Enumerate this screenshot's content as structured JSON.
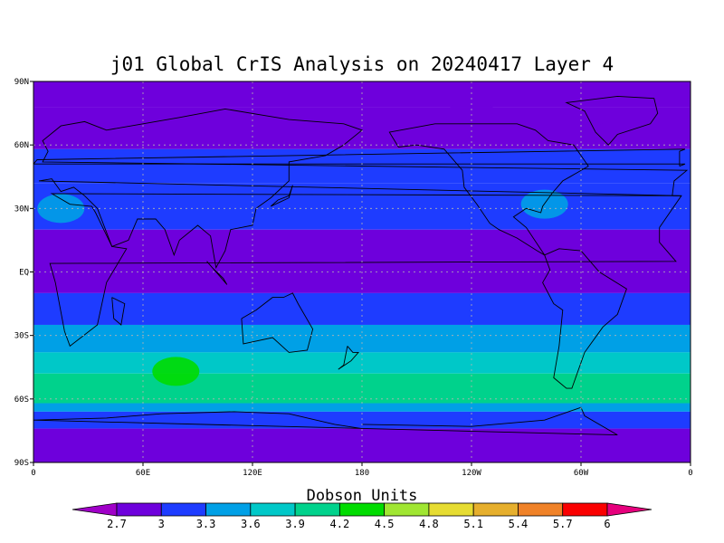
{
  "chart_data": {
    "type": "heatmap",
    "title": "j01 Global CrIS Analysis on 20240417 Layer 4",
    "colorbar_label": "Dobson Units",
    "x_ticks": [
      "0",
      "60E",
      "120E",
      "180",
      "120W",
      "60W",
      "0"
    ],
    "y_ticks": [
      "90N",
      "60N",
      "30N",
      "EQ",
      "30S",
      "60S",
      "90S"
    ],
    "xlim": [
      0,
      360
    ],
    "ylim": [
      -90,
      90
    ],
    "grid": true,
    "colorbar": {
      "tick_labels": [
        "2.7",
        "3",
        "3.3",
        "3.6",
        "3.9",
        "4.2",
        "4.5",
        "4.8",
        "5.1",
        "5.4",
        "5.7",
        "6"
      ],
      "colors": [
        "#a000c8",
        "#6e00dc",
        "#1e3cff",
        "#00a0e6",
        "#00c8c8",
        "#00d28c",
        "#00dc00",
        "#a0e632",
        "#e6dc32",
        "#e6af2d",
        "#f08228",
        "#fa0000",
        "#e6007d"
      ]
    },
    "lat_bands": [
      {
        "lat": [
          90,
          78
        ],
        "value": 2.8
      },
      {
        "lat": [
          78,
          58
        ],
        "value": 2.95
      },
      {
        "lat": [
          58,
          42
        ],
        "value": 3.2
      },
      {
        "lat": [
          42,
          20
        ],
        "value": 3.05
      },
      {
        "lat": [
          20,
          -10
        ],
        "value": 2.9
      },
      {
        "lat": [
          -10,
          -25
        ],
        "value": 3.05
      },
      {
        "lat": [
          -25,
          -38
        ],
        "value": 3.35
      },
      {
        "lat": [
          -38,
          -48
        ],
        "value": 3.7
      },
      {
        "lat": [
          -48,
          -62
        ],
        "value": 3.9
      },
      {
        "lat": [
          -62,
          -66
        ],
        "value": 3.5
      },
      {
        "lat": [
          -66,
          -74
        ],
        "value": 3.1
      },
      {
        "lat": [
          -74,
          -90
        ],
        "value": 2.8
      }
    ],
    "features": [
      {
        "lon": 78,
        "lat": -47,
        "value": 4.2
      },
      {
        "lon": 240,
        "lat": 75,
        "value": 2.75
      },
      {
        "lon": 320,
        "lat": 65,
        "value": 2.8
      },
      {
        "lon": 15,
        "lat": 30,
        "value": 3.5
      },
      {
        "lon": 280,
        "lat": 32,
        "value": 3.4
      },
      {
        "lon": 110,
        "lat": 5,
        "value": 2.8
      }
    ]
  }
}
